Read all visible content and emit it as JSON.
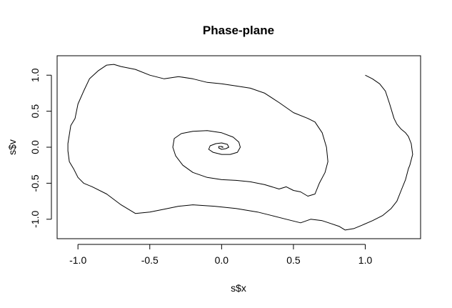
{
  "chart_data": {
    "type": "line",
    "title": "Phase-plane",
    "xlabel": "s$x",
    "ylabel": "s$v",
    "xlim": [
      -1.145,
      1.385
    ],
    "ylim": [
      -1.27,
      1.27
    ],
    "x_ticks": [
      -1.0,
      -0.5,
      0.0,
      0.5,
      1.0
    ],
    "x_tick_labels": [
      "-1.0",
      "-0.5",
      "0.0",
      "0.5",
      "1.0"
    ],
    "y_ticks": [
      -1.0,
      -0.5,
      0.0,
      0.5,
      1.0
    ],
    "y_tick_labels": [
      "-1.0",
      "-0.5",
      "0.0",
      "0.5",
      "1.0"
    ],
    "grid": false,
    "line_color": "#000000",
    "series": [
      {
        "x": [
          1.0,
          1.05,
          1.1,
          1.14,
          1.17,
          1.2,
          1.22,
          1.25,
          1.28,
          1.3,
          1.32,
          1.33,
          1.31,
          1.3,
          1.28,
          1.25,
          1.22,
          1.18,
          1.12,
          1.05,
          0.98,
          0.92,
          0.86,
          0.82,
          0.76,
          0.7,
          0.62,
          0.55,
          0.45,
          0.35,
          0.25,
          0.1,
          -0.05,
          -0.2,
          -0.3,
          -0.4,
          -0.5,
          -0.6,
          -0.7,
          -0.8,
          -0.9,
          -0.96,
          -1.0,
          -1.03,
          -1.06,
          -1.07,
          -1.07,
          -1.05,
          -1.02,
          -1.0,
          -0.96,
          -0.92,
          -0.86,
          -0.8,
          -0.75,
          -0.7,
          -0.6,
          -0.5,
          -0.4,
          -0.3,
          -0.2,
          -0.1,
          0.0,
          0.1,
          0.2,
          0.3,
          0.4,
          0.5,
          0.6,
          0.65,
          0.7,
          0.73,
          0.74,
          0.72,
          0.68,
          0.65,
          0.6,
          0.55,
          0.5,
          0.45,
          0.4,
          0.3,
          0.2,
          0.1,
          0.0,
          -0.1,
          -0.2,
          -0.27,
          -0.32,
          -0.34,
          -0.33,
          -0.28,
          -0.2,
          -0.1,
          0.0,
          0.08,
          0.12,
          0.13,
          0.11,
          0.06,
          0.0,
          -0.06,
          -0.09,
          -0.08,
          -0.04,
          0.0,
          0.04,
          0.05,
          0.03,
          0.0,
          -0.02,
          -0.02,
          0.0,
          0.01,
          0.0
        ],
        "y": [
          1.0,
          0.95,
          0.88,
          0.78,
          0.6,
          0.4,
          0.32,
          0.25,
          0.2,
          0.15,
          0.05,
          -0.1,
          -0.25,
          -0.3,
          -0.45,
          -0.6,
          -0.75,
          -0.85,
          -0.95,
          -1.02,
          -1.08,
          -1.13,
          -1.15,
          -1.1,
          -1.06,
          -1.02,
          -1.0,
          -1.05,
          -1.0,
          -0.95,
          -0.9,
          -0.85,
          -0.82,
          -0.8,
          -0.82,
          -0.86,
          -0.9,
          -0.92,
          -0.8,
          -0.65,
          -0.55,
          -0.5,
          -0.42,
          -0.3,
          -0.2,
          -0.05,
          0.05,
          0.3,
          0.4,
          0.6,
          0.78,
          0.95,
          1.06,
          1.14,
          1.15,
          1.12,
          1.08,
          1.0,
          0.95,
          0.98,
          0.95,
          0.9,
          0.88,
          0.85,
          0.82,
          0.75,
          0.62,
          0.48,
          0.4,
          0.35,
          0.2,
          0.0,
          -0.2,
          -0.35,
          -0.5,
          -0.65,
          -0.68,
          -0.62,
          -0.6,
          -0.55,
          -0.58,
          -0.52,
          -0.48,
          -0.46,
          -0.45,
          -0.42,
          -0.35,
          -0.25,
          -0.12,
          0.0,
          0.12,
          0.19,
          0.22,
          0.23,
          0.2,
          0.14,
          0.07,
          0.0,
          -0.07,
          -0.1,
          -0.1,
          -0.07,
          -0.03,
          0.02,
          0.05,
          0.06,
          0.04,
          0.0,
          -0.02,
          -0.03,
          -0.01,
          0.01,
          0.01,
          0.0,
          0.0
        ]
      }
    ]
  }
}
